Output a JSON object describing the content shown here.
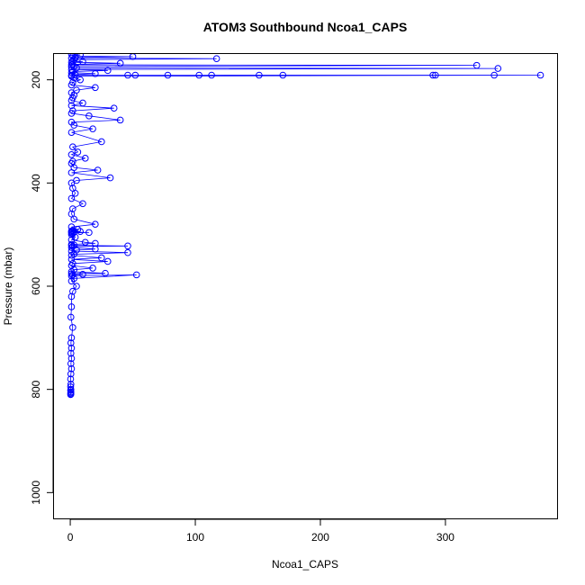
{
  "chart_data": {
    "type": "line",
    "title": "ATOM3 Southbound Ncoa1_CAPS",
    "xlabel": "Ncoa1_CAPS",
    "ylabel": "Pressure (mbar)",
    "xlim": [
      -13,
      390
    ],
    "ylim": [
      150,
      1050
    ],
    "y_inverted": true,
    "x_ticks": [
      0,
      100,
      200,
      300
    ],
    "y_ticks": [
      200,
      400,
      600,
      800,
      1000
    ],
    "grid": false,
    "legend": "none",
    "marker": "open-circle",
    "color": "#0000ff",
    "series": [
      {
        "x": [
          1,
          8,
          2,
          50,
          4,
          1,
          117,
          3,
          2,
          10,
          1,
          40,
          2,
          1,
          325,
          3,
          1,
          5,
          342,
          1,
          30,
          2,
          1,
          20,
          4,
          1,
          46,
          52,
          78,
          103,
          113,
          151,
          170,
          290,
          292,
          339,
          376,
          1,
          3,
          8,
          2,
          1,
          20,
          5,
          1,
          3,
          2,
          1,
          10,
          1,
          35,
          2,
          1,
          15,
          40,
          1,
          3,
          18,
          1,
          25,
          2,
          6,
          1,
          12,
          2,
          1,
          3,
          22,
          1,
          32,
          5,
          1,
          2,
          4,
          1,
          10,
          2,
          1,
          3,
          20,
          1,
          6,
          2,
          1,
          8,
          1,
          3,
          15,
          1,
          2,
          1,
          4,
          1,
          12,
          20,
          1,
          3,
          1,
          46,
          2,
          1,
          20,
          5,
          1,
          46,
          3,
          1,
          25,
          1,
          30,
          2,
          1,
          18,
          3,
          1,
          28,
          1,
          10,
          2,
          1,
          53,
          3,
          1,
          5,
          2,
          1,
          1,
          0.5,
          2,
          1,
          0.5,
          1,
          0.5,
          1,
          0.5,
          1,
          0.5,
          0.3,
          0.5,
          0.3,
          0.5,
          0.3,
          0.5,
          0.3,
          0.5,
          0.3
        ],
        "y": [
          150,
          152,
          154,
          155,
          157,
          158,
          159,
          161,
          163,
          165,
          166,
          168,
          170,
          171,
          172,
          174,
          175,
          177,
          178,
          180,
          182,
          184,
          186,
          188,
          190,
          191,
          191,
          191,
          191,
          191,
          191,
          191,
          191,
          191,
          191,
          191,
          191,
          193,
          196,
          200,
          205,
          210,
          215,
          220,
          225,
          230,
          235,
          240,
          245,
          250,
          255,
          260,
          265,
          270,
          278,
          282,
          288,
          295,
          302,
          320,
          330,
          340,
          345,
          352,
          358,
          362,
          370,
          375,
          380,
          390,
          395,
          400,
          410,
          420,
          430,
          440,
          450,
          460,
          470,
          480,
          485,
          490,
          492,
          493,
          494,
          495,
          495,
          496,
          497,
          498,
          500,
          505,
          510,
          515,
          517,
          519,
          520,
          521,
          522,
          523,
          525,
          528,
          530,
          532,
          535,
          538,
          540,
          545,
          548,
          552,
          556,
          560,
          565,
          568,
          572,
          575,
          576,
          577,
          578,
          580,
          578,
          585,
          590,
          600,
          610,
          620,
          640,
          660,
          680,
          700,
          710,
          720,
          730,
          740,
          750,
          760,
          770,
          780,
          790,
          795,
          800,
          802,
          805,
          807,
          809,
          810
        ]
      }
    ]
  }
}
